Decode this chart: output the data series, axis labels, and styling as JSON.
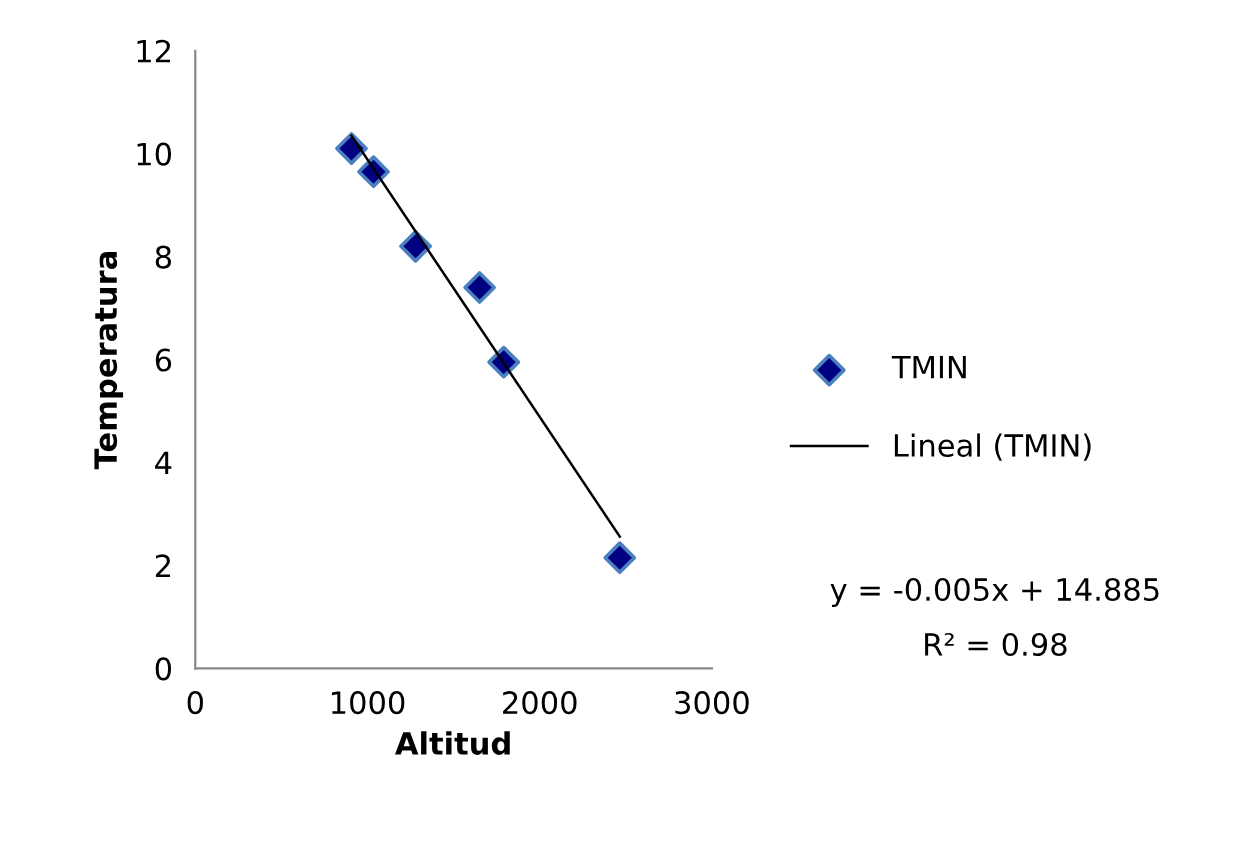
{
  "chart_data": {
    "type": "scatter",
    "xlabel": "Altitud",
    "ylabel": "Temperatura",
    "xlim": [
      0,
      3000
    ],
    "xticks": [
      0,
      1000,
      2000,
      3000
    ],
    "ylim": [
      0,
      12
    ],
    "yticks": [
      0,
      2,
      4,
      6,
      8,
      10,
      12
    ],
    "grid": false,
    "legend": "right",
    "series": [
      {
        "name": "TMIN",
        "color": "#000080",
        "marker": "diamond",
        "x": [
          907,
          1035,
          1279,
          1651,
          1791,
          2465
        ],
        "values": [
          10.1,
          9.65,
          8.2,
          7.4,
          5.95,
          2.15
        ]
      },
      {
        "name": "Lineal (TMIN)",
        "type": "line",
        "color": "#000000",
        "marker": "none",
        "line_style": "solid",
        "x": [
          907,
          2465
        ],
        "values": [
          10.35,
          2.56
        ]
      }
    ],
    "annotations": [
      "y = -0.005x + 14.885",
      "R² = 0.98"
    ]
  }
}
